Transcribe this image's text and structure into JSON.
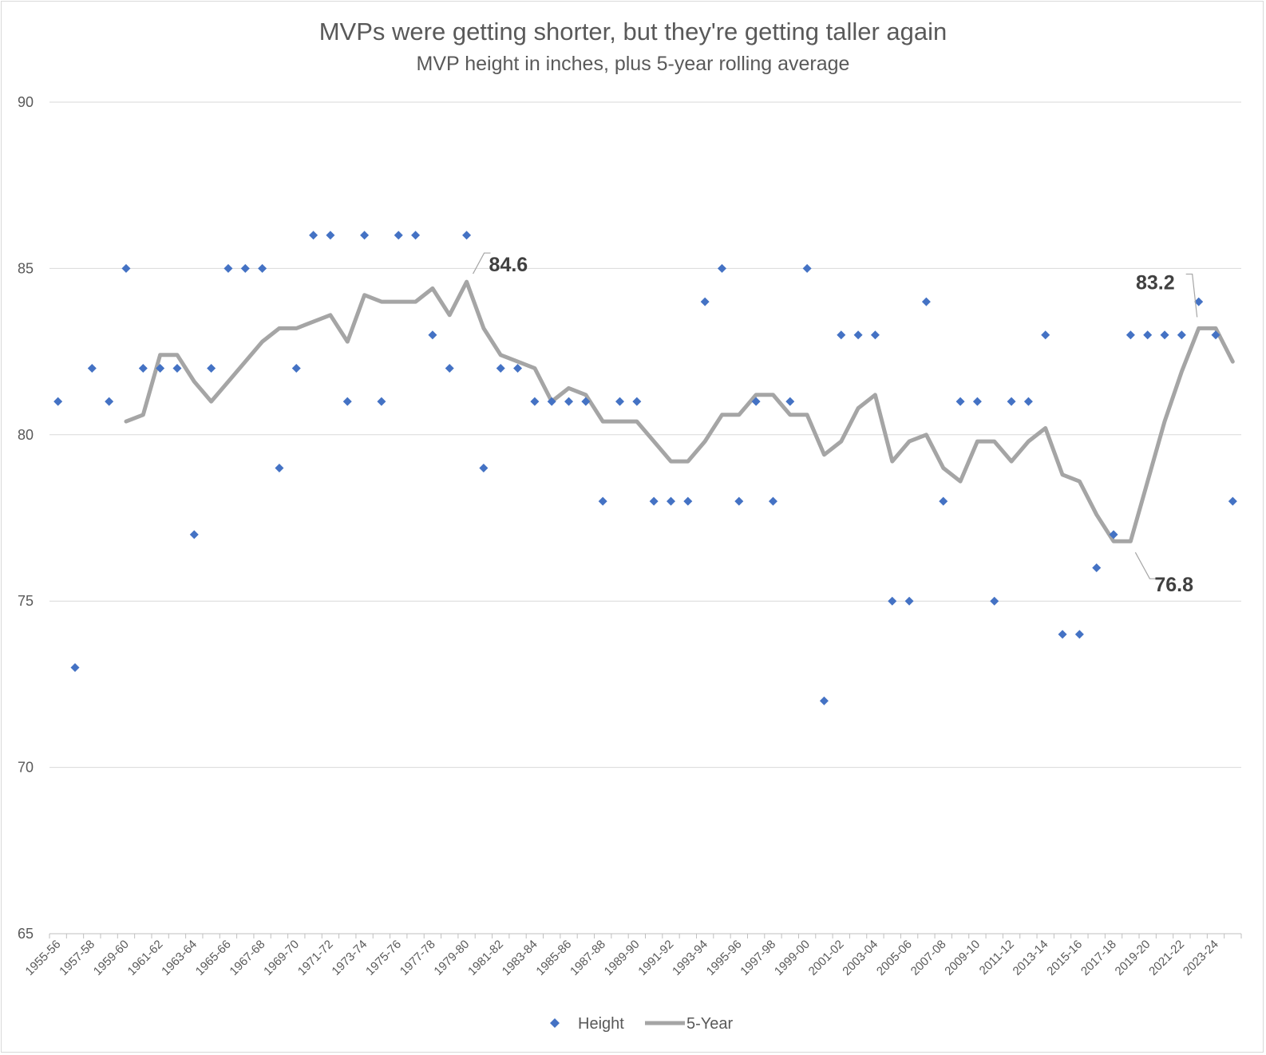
{
  "chart_data": {
    "type": "scatter",
    "title": "MVPs were getting shorter, but they're getting taller again",
    "subtitle": "MVP height in inches, plus 5-year rolling average",
    "xlabel": "",
    "ylabel": "",
    "ylim": [
      65,
      90
    ],
    "yticks": [
      65,
      70,
      75,
      80,
      85,
      90
    ],
    "grid": true,
    "legend_position": "bottom",
    "categories": [
      "1955-56",
      "1956-57",
      "1957-58",
      "1958-59",
      "1959-60",
      "1960-61",
      "1961-62",
      "1962-63",
      "1963-64",
      "1964-65",
      "1965-66",
      "1966-67",
      "1967-68",
      "1968-69",
      "1969-70",
      "1970-71",
      "1971-72",
      "1972-73",
      "1973-74",
      "1974-75",
      "1975-76",
      "1976-77",
      "1977-78",
      "1978-79",
      "1979-80",
      "1980-81",
      "1981-82",
      "1982-83",
      "1983-84",
      "1984-85",
      "1985-86",
      "1986-87",
      "1987-88",
      "1988-89",
      "1989-90",
      "1990-91",
      "1991-92",
      "1992-93",
      "1993-94",
      "1994-95",
      "1995-96",
      "1996-97",
      "1997-98",
      "1998-99",
      "1999-00",
      "2000-01",
      "2001-02",
      "2002-03",
      "2003-04",
      "2004-05",
      "2005-06",
      "2006-07",
      "2007-08",
      "2008-09",
      "2009-10",
      "2010-11",
      "2011-12",
      "2012-13",
      "2013-14",
      "2014-15",
      "2015-16",
      "2016-17",
      "2017-18",
      "2018-19",
      "2019-20",
      "2020-21",
      "2021-22",
      "2022-23",
      "2023-24",
      "2024-25"
    ],
    "tick_labels": [
      "1955-56",
      "1957-58",
      "1959-60",
      "1961-62",
      "1963-64",
      "1965-66",
      "1967-68",
      "1969-70",
      "1971-72",
      "1973-74",
      "1975-76",
      "1977-78",
      "1979-80",
      "1981-82",
      "1983-84",
      "1985-86",
      "1987-88",
      "1989-90",
      "1991-92",
      "1993-94",
      "1995-96",
      "1997-98",
      "1999-00",
      "2001-02",
      "2003-04",
      "2005-06",
      "2007-08",
      "2009-10",
      "2011-12",
      "2013-14",
      "2015-16",
      "2017-18",
      "2019-20",
      "2021-22",
      "2023-24"
    ],
    "series": [
      {
        "name": "Height",
        "type": "scatter",
        "color": "#4472c4",
        "values": [
          81,
          73,
          82,
          81,
          85,
          82,
          82,
          82,
          77,
          82,
          85,
          85,
          85,
          79,
          82,
          86,
          86,
          81,
          86,
          81,
          86,
          86,
          83,
          82,
          86,
          79,
          82,
          82,
          81,
          81,
          81,
          81,
          78,
          81,
          81,
          78,
          78,
          78,
          84,
          85,
          78,
          81,
          78,
          81,
          85,
          72,
          83,
          83,
          83,
          75,
          75,
          84,
          78,
          81,
          81,
          75,
          81,
          81,
          83,
          74,
          74,
          76,
          77,
          83,
          83,
          83,
          83,
          84,
          83,
          78
        ]
      },
      {
        "name": "5-Year",
        "type": "line",
        "color": "#a5a5a5",
        "values": [
          null,
          null,
          null,
          null,
          80.4,
          80.6,
          82.4,
          82.4,
          81.6,
          81.0,
          81.6,
          82.2,
          82.8,
          83.2,
          83.2,
          83.4,
          83.6,
          82.8,
          84.2,
          84.0,
          84.0,
          84.0,
          84.4,
          83.6,
          84.6,
          83.2,
          82.4,
          82.2,
          82.0,
          81.0,
          81.4,
          81.2,
          80.4,
          80.4,
          80.4,
          79.8,
          79.2,
          79.2,
          79.8,
          80.6,
          80.6,
          81.2,
          81.2,
          80.6,
          80.6,
          79.4,
          79.8,
          80.8,
          81.2,
          79.2,
          79.8,
          80.0,
          79.0,
          78.6,
          79.8,
          79.8,
          79.2,
          79.8,
          80.2,
          78.8,
          78.6,
          77.6,
          76.8,
          76.8,
          78.6,
          80.4,
          81.9,
          83.2,
          83.2,
          82.2
        ]
      }
    ],
    "annotations": [
      {
        "text": "84.6",
        "category": "1979-80",
        "series": "5-Year"
      },
      {
        "text": "83.2",
        "category": "2022-23",
        "series": "5-Year"
      },
      {
        "text": "76.8",
        "category": "2018-19",
        "series": "5-Year"
      }
    ]
  }
}
